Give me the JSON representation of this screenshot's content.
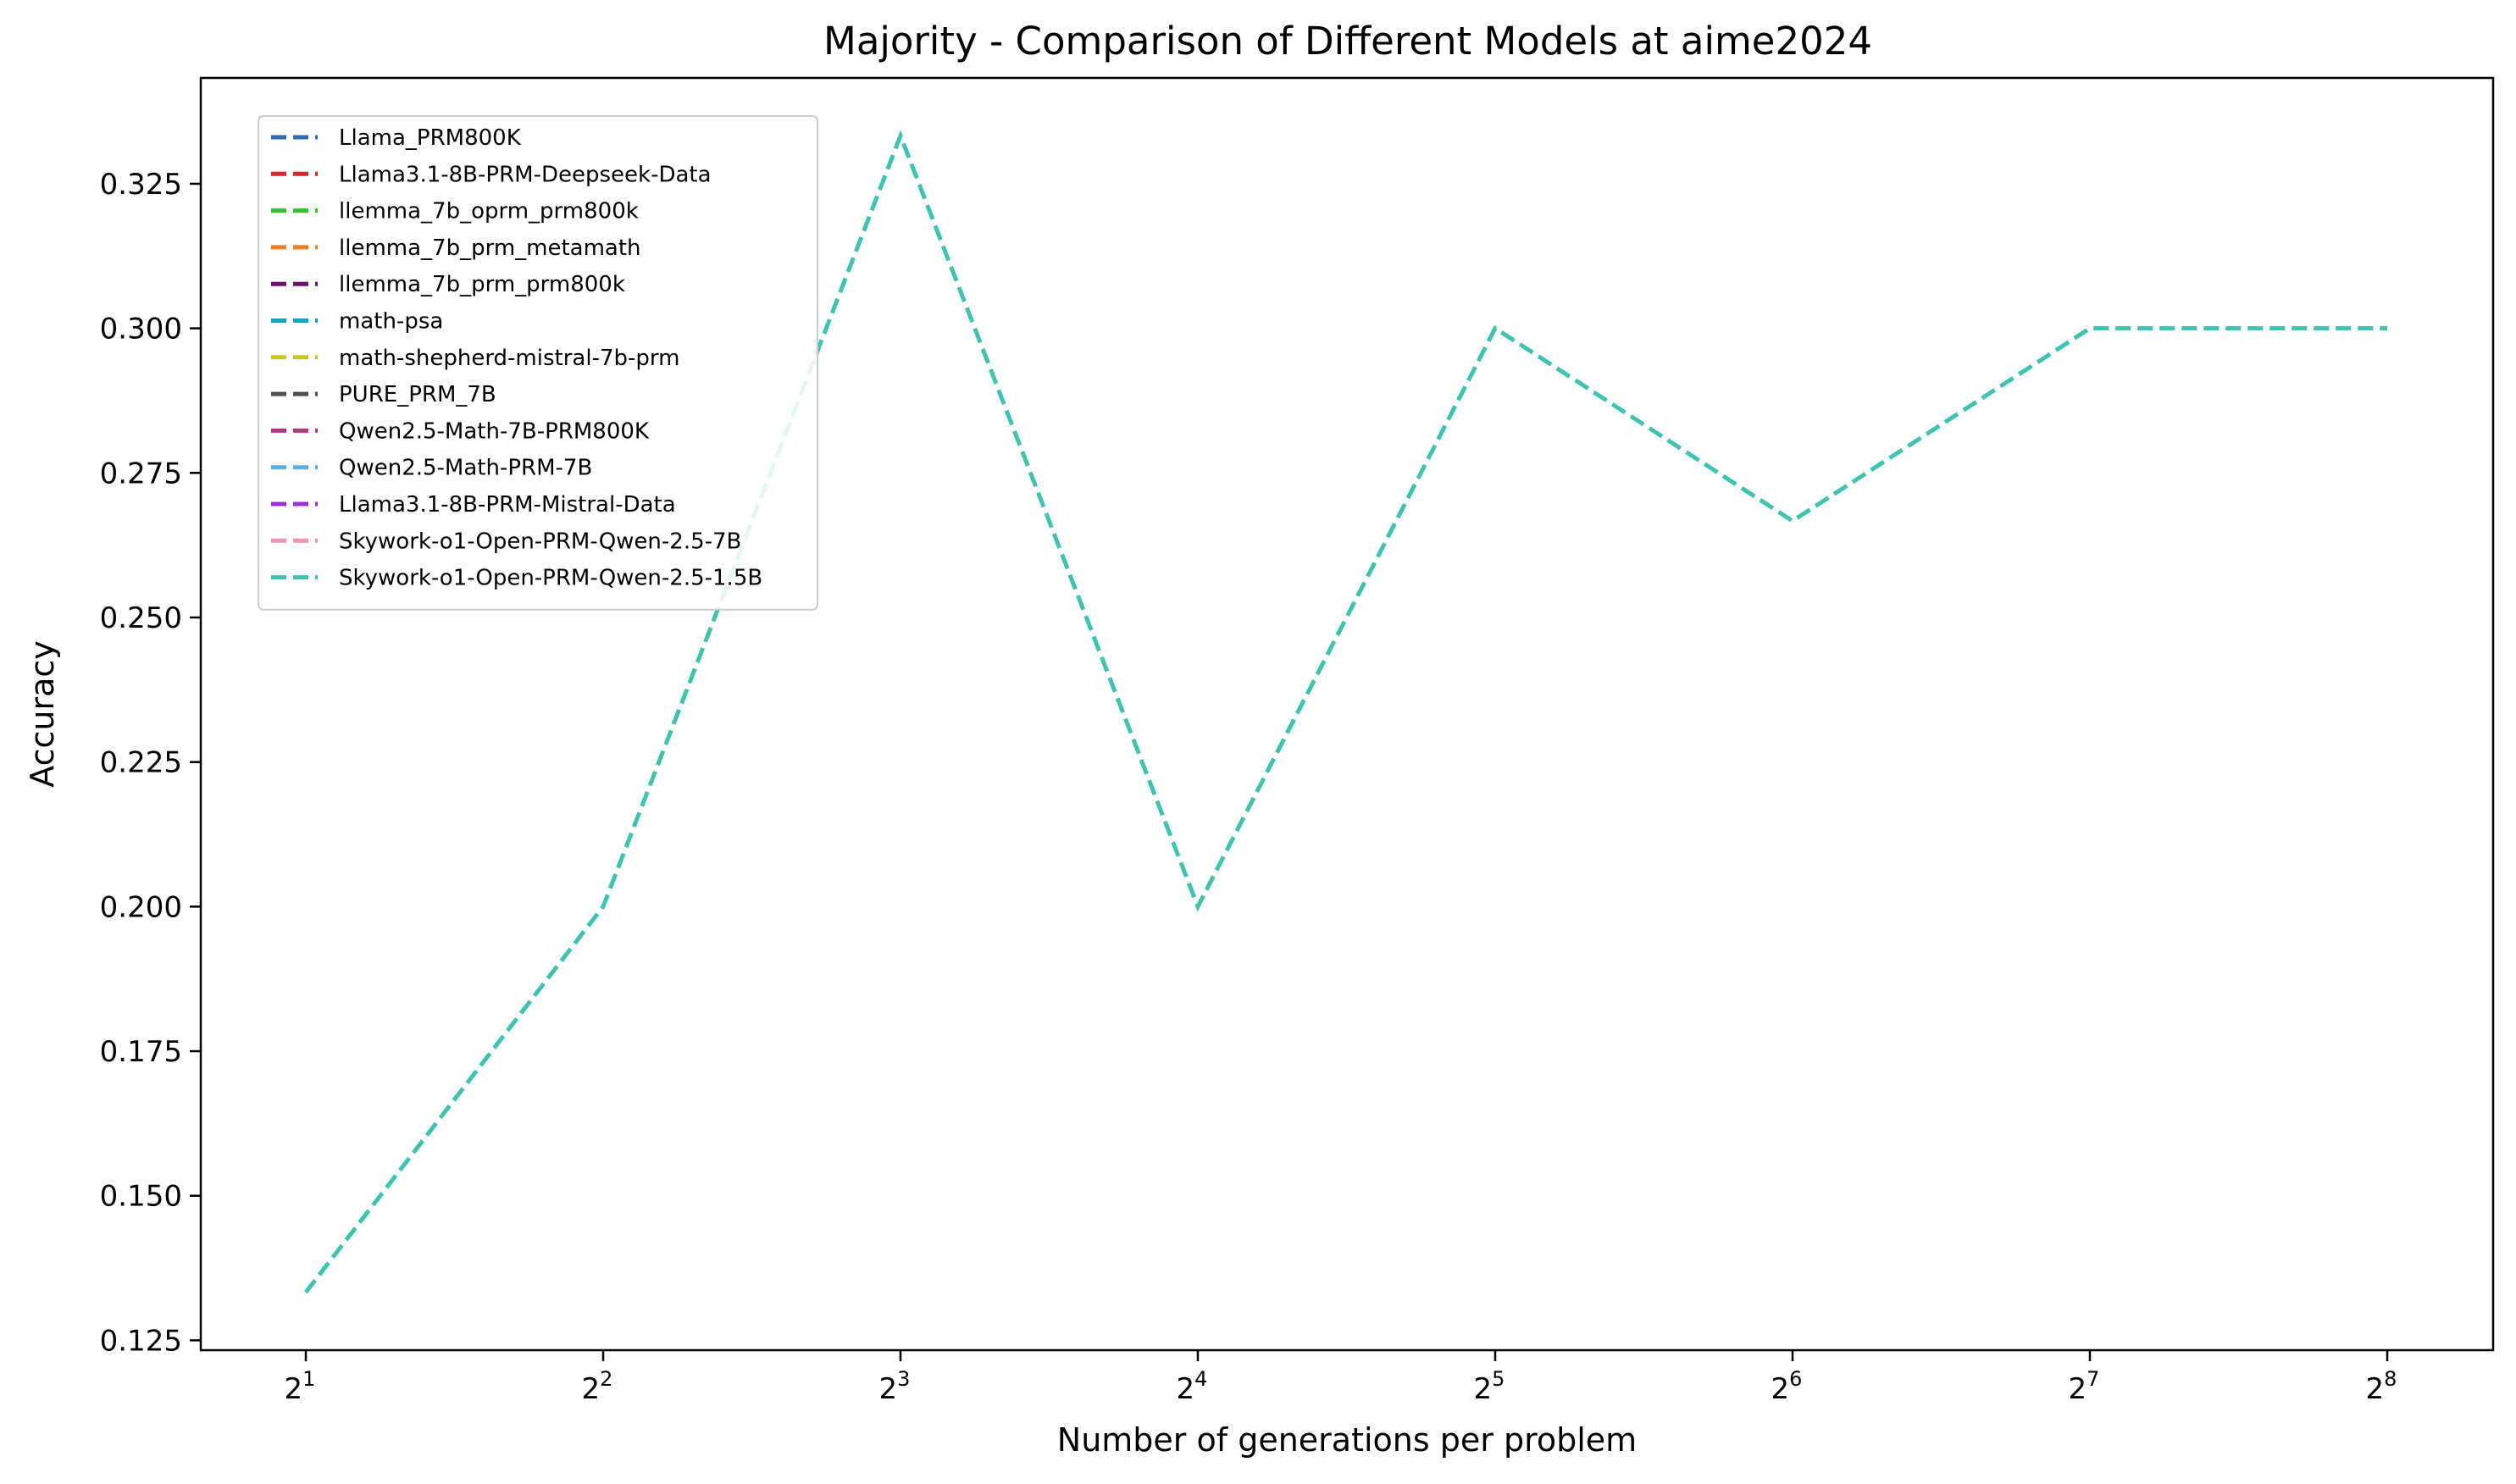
{
  "chart_data": {
    "type": "line",
    "title": "Majority - Comparison of Different Models at aime2024",
    "xlabel": "Number of generations per problem",
    "ylabel": "Accuracy",
    "x_scale": "log2",
    "x": [
      2,
      4,
      8,
      16,
      32,
      64,
      128,
      256
    ],
    "x_tick_labels": [
      {
        "base": "2",
        "exp": "1"
      },
      {
        "base": "2",
        "exp": "2"
      },
      {
        "base": "2",
        "exp": "3"
      },
      {
        "base": "2",
        "exp": "4"
      },
      {
        "base": "2",
        "exp": "5"
      },
      {
        "base": "2",
        "exp": "6"
      },
      {
        "base": "2",
        "exp": "7"
      },
      {
        "base": "2",
        "exp": "8"
      }
    ],
    "ylim": [
      0.1233,
      0.3433
    ],
    "y_ticks": [
      "0.125",
      "0.150",
      "0.175",
      "0.200",
      "0.225",
      "0.250",
      "0.275",
      "0.300",
      "0.325"
    ],
    "grid": false,
    "legend_position": "upper-left",
    "series": [
      {
        "name": "Llama_PRM800K",
        "color": "#2e6bb0",
        "values": null
      },
      {
        "name": "Llama3.1-8B-PRM-Deepseek-Data",
        "color": "#d42a2a",
        "values": null
      },
      {
        "name": "llemma_7b_oprm_prm800k",
        "color": "#2fc42f",
        "values": null
      },
      {
        "name": "llemma_7b_prm_metamath",
        "color": "#f07f1c",
        "values": null
      },
      {
        "name": "llemma_7b_prm_prm800k",
        "color": "#6e0f6e",
        "values": null
      },
      {
        "name": "math-psa",
        "color": "#1a9fbf",
        "values": null
      },
      {
        "name": "math-shepherd-mistral-7b-prm",
        "color": "#c7c722",
        "values": null
      },
      {
        "name": "PURE_PRM_7B",
        "color": "#4d4d4d",
        "values": null
      },
      {
        "name": "Qwen2.5-Math-7B-PRM800K",
        "color": "#b5357f",
        "values": null
      },
      {
        "name": "Qwen2.5-Math-PRM-7B",
        "color": "#5aaee0",
        "values": null
      },
      {
        "name": "Llama3.1-8B-PRM-Mistral-Data",
        "color": "#9b30d9",
        "values": null
      },
      {
        "name": "Skywork-o1-Open-PRM-Qwen-2.5-7B",
        "color": "#ee93b4",
        "values": null
      },
      {
        "name": "Skywork-o1-Open-PRM-Qwen-2.5-1.5B",
        "color": "#3ec3b0",
        "values": [
          0.1333,
          0.2,
          0.3333,
          0.2,
          0.3,
          0.2667,
          0.3,
          0.3
        ]
      }
    ]
  }
}
